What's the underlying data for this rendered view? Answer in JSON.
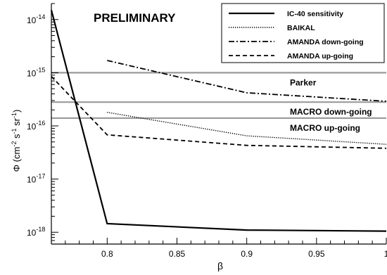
{
  "chart_data": {
    "type": "line",
    "annotation": "PRELIMINARY",
    "xlabel": "β",
    "ylabel": {
      "main": "Φ (cm",
      "sup1": "-2",
      "mid1": " s",
      "sup2": "-1",
      "mid2": " sr",
      "sup3": "-1",
      "end": ")"
    },
    "xlim": [
      0.76,
      1.0
    ],
    "ylim": [
      6e-19,
      2e-14
    ],
    "yscale": "log",
    "x_ticks": [
      {
        "value": 0.8,
        "label": "0.8"
      },
      {
        "value": 0.85,
        "label": "0.85"
      },
      {
        "value": 0.9,
        "label": "0.9"
      },
      {
        "value": 0.95,
        "label": "0.95"
      },
      {
        "value": 1.0,
        "label": "1"
      }
    ],
    "y_ticks": [
      {
        "value": 1e-14,
        "base": "10",
        "exp": "-14"
      },
      {
        "value": 1e-15,
        "base": "10",
        "exp": "-15"
      },
      {
        "value": 1e-16,
        "base": "10",
        "exp": "-16"
      },
      {
        "value": 1e-17,
        "base": "10",
        "exp": "-17"
      },
      {
        "value": 1e-18,
        "base": "10",
        "exp": "-18"
      }
    ],
    "grid": false,
    "legend_position": "top-right",
    "series": [
      {
        "name": "IC-40 sensitivity",
        "style": "solid",
        "x": [
          0.76,
          0.8,
          0.9,
          1.0
        ],
        "y": [
          1.5e-14,
          1.45e-18,
          1.1e-18,
          1.05e-18
        ]
      },
      {
        "name": "BAIKAL",
        "style": "dotted",
        "x": [
          0.8,
          0.9,
          1.0
        ],
        "y": [
          1.8e-16,
          6.5e-17,
          4.5e-17
        ]
      },
      {
        "name": "AMANDA down-going",
        "style": "dashdot",
        "x": [
          0.8,
          0.9,
          1.0
        ],
        "y": [
          1.7e-15,
          4.2e-16,
          2.9e-16
        ]
      },
      {
        "name": "AMANDA up-going",
        "style": "dashed",
        "x": [
          0.76,
          0.8,
          0.9,
          1.0
        ],
        "y": [
          8.5e-16,
          6.8e-17,
          4.3e-17,
          3.8e-17
        ]
      }
    ],
    "reference_lines": [
      {
        "label": "Parker",
        "y": 1e-15,
        "color": "#9a9a9a"
      },
      {
        "label": "MACRO down-going",
        "y": 2.8e-16,
        "color": "#9a9a9a"
      },
      {
        "label": "MACRO up-going",
        "y": 1.4e-16,
        "color": "#9a9a9a"
      }
    ]
  }
}
